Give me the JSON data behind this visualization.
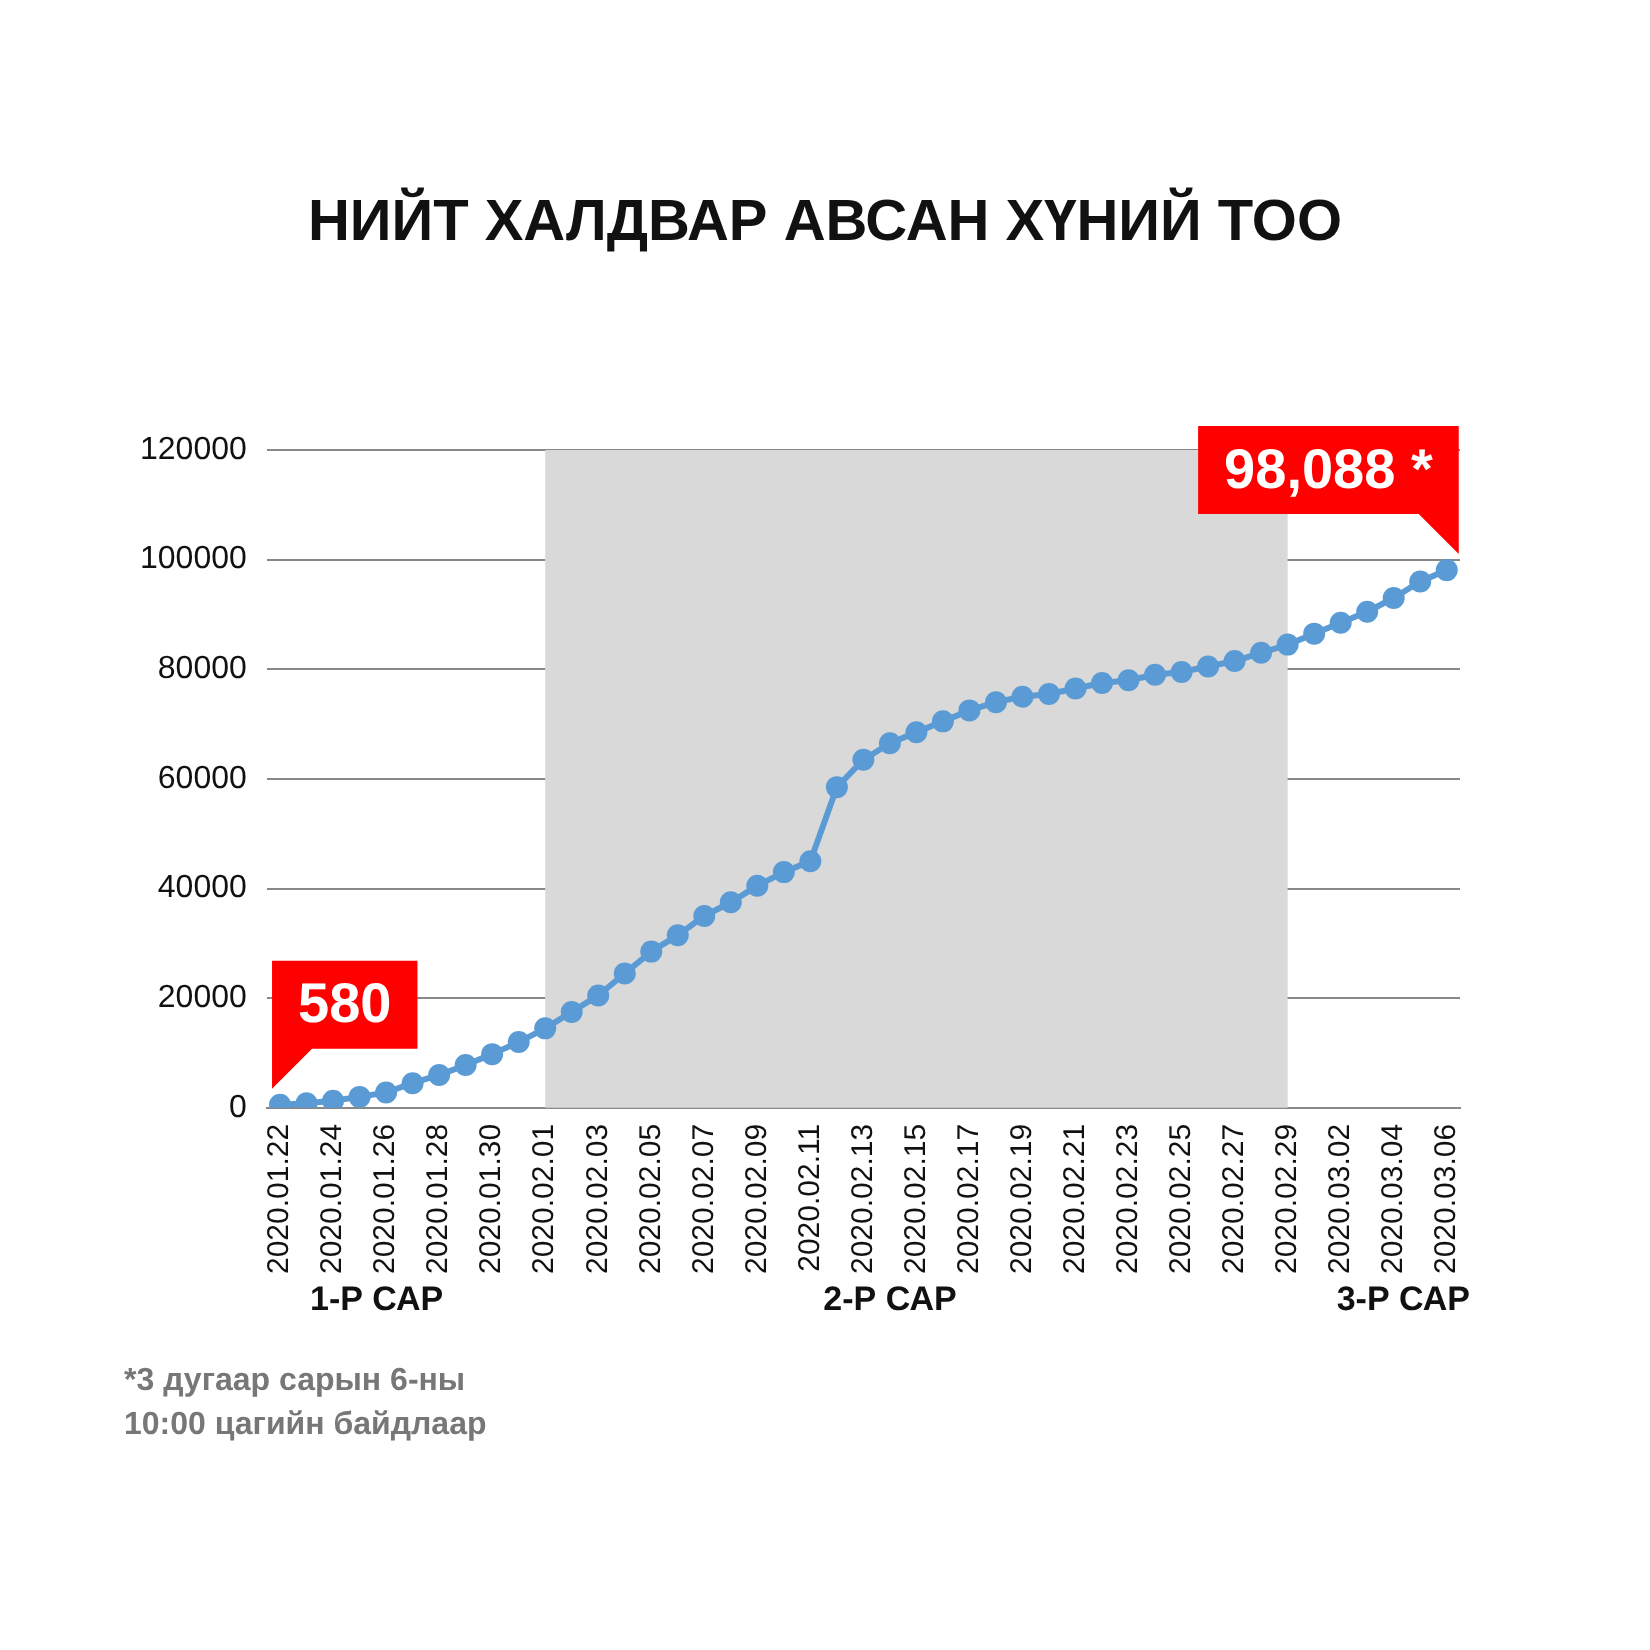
{
  "chart_data": {
    "type": "line",
    "title": "НИЙТ ХАЛДВАР АВСАН ХҮНИЙ ТОО",
    "categories": [
      "2020.01.22",
      null,
      "2020.01.24",
      null,
      "2020.01.26",
      null,
      "2020.01.28",
      null,
      "2020.01.30",
      null,
      "2020.02.01",
      null,
      "2020.02.03",
      null,
      "2020.02.05",
      null,
      "2020.02.07",
      null,
      "2020.02.09",
      null,
      "2020.02.11",
      null,
      "2020.02.13",
      null,
      "2020.02.15",
      null,
      "2020.02.17",
      null,
      "2020.02.19",
      null,
      "2020.02.21",
      null,
      "2020.02.23",
      null,
      "2020.02.25",
      null,
      "2020.02.27",
      null,
      "2020.02.29",
      null,
      "2020.03.02",
      null,
      "2020.03.04",
      null,
      "2020.03.06"
    ],
    "series": [
      {
        "color": "#5b9bd5",
        "values": [
          580,
          850,
          1300,
          2000,
          2800,
          4500,
          6000,
          7800,
          9800,
          12000,
          14500,
          17500,
          20500,
          24500,
          28500,
          31500,
          35000,
          37500,
          40500,
          43000,
          45000,
          58500,
          63500,
          66500,
          68500,
          70500,
          72500,
          74000,
          75000,
          75500,
          76500,
          77500,
          78000,
          79000,
          79500,
          80500,
          81500,
          83000,
          84500,
          86500,
          88500,
          90500,
          93000,
          96000,
          98088
        ]
      }
    ],
    "ylim": [
      0,
      120000
    ],
    "yticks": [
      0,
      20000,
      40000,
      60000,
      80000,
      100000,
      120000
    ],
    "grid": "y",
    "marker": "circle",
    "legend": false,
    "bands": [
      {
        "axis": "x",
        "from": "2020.02.01",
        "to": "2020.02.29",
        "color": "#d9d9d9"
      }
    ],
    "annotations": [
      {
        "text": "580",
        "x": "2020.01.22",
        "y": 580
      },
      {
        "text": "98,088 *",
        "x": "2020.03.06",
        "y": 98088
      },
      "1-Р САР",
      "2-Р САР",
      "3-Р САР",
      "*3 дугаар сарын 6-ны 10:00 цагийн байдлаар"
    ]
  }
}
